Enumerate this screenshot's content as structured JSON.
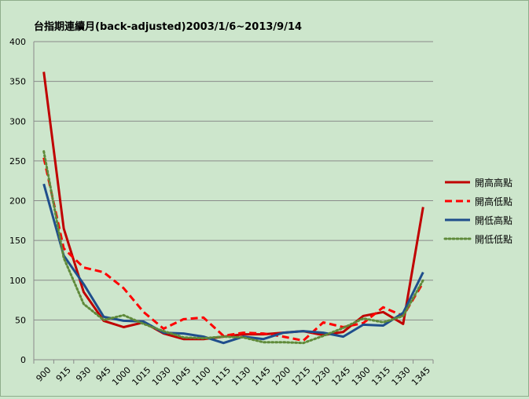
{
  "title": "台指期連續月(back-adjusted)2003/1/6~2013/9/14",
  "chart_data": {
    "type": "line",
    "title": "台指期連續月(back-adjusted)2003/1/6~2013/9/14",
    "xlabel": "",
    "ylabel": "",
    "categories": [
      "900",
      "915",
      "930",
      "945",
      "1000",
      "1015",
      "1030",
      "1045",
      "1100",
      "1115",
      "1130",
      "1145",
      "1200",
      "1215",
      "1230",
      "1245",
      "1300",
      "1315",
      "1330",
      "1345"
    ],
    "ylim": [
      0,
      400
    ],
    "yticks": [
      0,
      50,
      100,
      150,
      200,
      250,
      300,
      350,
      400
    ],
    "grid": true,
    "legend": "right",
    "series": [
      {
        "name": "開高高點",
        "color": "#c00000",
        "style": "solid",
        "values": [
          362,
          165,
          85,
          49,
          41,
          47,
          33,
          26,
          26,
          29,
          32,
          32,
          34,
          36,
          31,
          35,
          55,
          60,
          45,
          192
        ]
      },
      {
        "name": "開高低點",
        "color": "#ff0000",
        "style": "dashed",
        "values": [
          254,
          140,
          116,
          110,
          90,
          60,
          39,
          51,
          53,
          30,
          34,
          33,
          29,
          24,
          47,
          41,
          46,
          66,
          55,
          97
        ]
      },
      {
        "name": "開低高點",
        "color": "#1f4e8c",
        "style": "solid",
        "values": [
          221,
          131,
          95,
          54,
          49,
          48,
          34,
          33,
          29,
          21,
          29,
          26,
          34,
          36,
          34,
          29,
          44,
          43,
          59,
          110
        ]
      },
      {
        "name": "開低低點",
        "color": "#5f8a3a",
        "style": "dotted",
        "values": [
          262,
          128,
          70,
          50,
          56,
          45,
          36,
          28,
          27,
          29,
          28,
          22,
          22,
          21,
          30,
          40,
          52,
          47,
          55,
          100
        ]
      }
    ]
  }
}
